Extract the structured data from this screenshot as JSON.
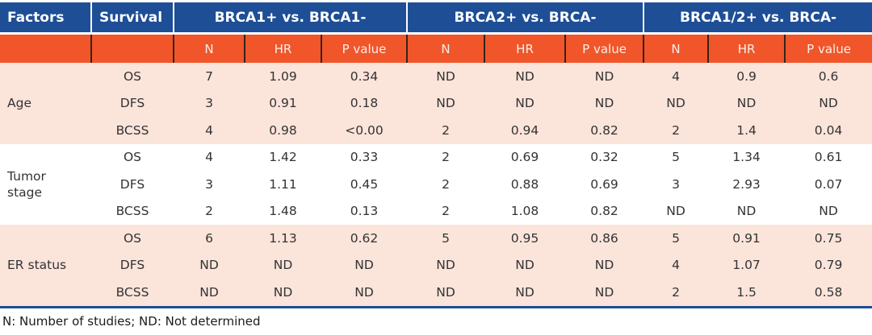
{
  "table": {
    "header": {
      "factors": "Factors",
      "survival": "Survival",
      "sections": [
        "BRCA1+ vs. BRCA1-",
        "BRCA2+ vs. BRCA-",
        "BRCA1/2+ vs. BRCA-"
      ],
      "sub_labels": [
        "N",
        "HR",
        "P value"
      ]
    },
    "groups": [
      {
        "factor": "Age",
        "rows": [
          {
            "survival": "OS",
            "values": [
              "7",
              "1.09",
              "0.34",
              "ND",
              "ND",
              "ND",
              "4",
              "0.9",
              "0.6"
            ]
          },
          {
            "survival": "DFS",
            "values": [
              "3",
              "0.91",
              "0.18",
              "ND",
              "ND",
              "ND",
              "ND",
              "ND",
              "ND"
            ]
          },
          {
            "survival": "BCSS",
            "values": [
              "4",
              "0.98",
              "<0.00",
              "2",
              "0.94",
              "0.82",
              "2",
              "1.4",
              "0.04"
            ]
          }
        ]
      },
      {
        "factor": "Tumor stage",
        "rows": [
          {
            "survival": "OS",
            "values": [
              "4",
              "1.42",
              "0.33",
              "2",
              "0.69",
              "0.32",
              "5",
              "1.34",
              "0.61"
            ]
          },
          {
            "survival": "DFS",
            "values": [
              "3",
              "1.11",
              "0.45",
              "2",
              "0.88",
              "0.69",
              "3",
              "2.93",
              "0.07"
            ]
          },
          {
            "survival": "BCSS",
            "values": [
              "2",
              "1.48",
              "0.13",
              "2",
              "1.08",
              "0.82",
              "ND",
              "ND",
              "ND"
            ]
          }
        ]
      },
      {
        "factor": "ER status",
        "rows": [
          {
            "survival": "OS",
            "values": [
              "6",
              "1.13",
              "0.62",
              "5",
              "0.95",
              "0.86",
              "5",
              "0.91",
              "0.75"
            ]
          },
          {
            "survival": "DFS",
            "values": [
              "ND",
              "ND",
              "ND",
              "ND",
              "ND",
              "ND",
              "4",
              "1.07",
              "0.79"
            ]
          },
          {
            "survival": "BCSS",
            "values": [
              "ND",
              "ND",
              "ND",
              "ND",
              "ND",
              "ND",
              "2",
              "1.5",
              "0.58"
            ]
          }
        ]
      }
    ],
    "footnote": "N: Number of studies; ND: Not determined"
  },
  "colors": {
    "header_blue": "#1d4e96",
    "header_orange": "#f0562a",
    "row_pink": "#fbe4da",
    "row_white": "#ffffff",
    "separator_dark": "#35231c",
    "bottom_border_blue": "#1d4e96"
  }
}
